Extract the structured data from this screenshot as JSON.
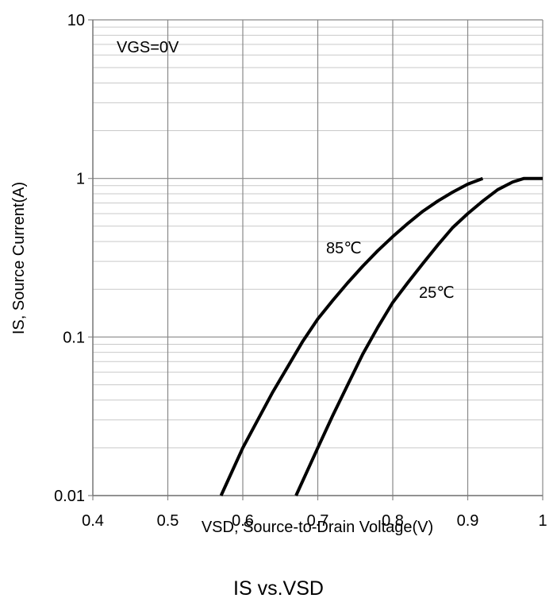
{
  "chart_data": {
    "type": "line",
    "title": "IS vs.VSD",
    "xlabel": "VSD, Source-to-Drain Voltage(V)",
    "ylabel": "IS, Source Current(A)",
    "xlim": [
      0.4,
      1.0
    ],
    "ylim": [
      0.01,
      10
    ],
    "yscale": "log",
    "grid": true,
    "x_ticks": [
      "0.4",
      "0.5",
      "0.6",
      "0.7",
      "0.8",
      "0.9",
      "1"
    ],
    "y_ticks": [
      "0.01",
      "0.1",
      "1",
      "10"
    ],
    "annotation": "VGS=0V",
    "series": [
      {
        "name": "85℃",
        "x": [
          0.571,
          0.6,
          0.62,
          0.64,
          0.66,
          0.68,
          0.7,
          0.72,
          0.74,
          0.76,
          0.78,
          0.8,
          0.82,
          0.84,
          0.86,
          0.88,
          0.9,
          0.92
        ],
        "y": [
          0.01,
          0.02,
          0.03,
          0.045,
          0.065,
          0.094,
          0.13,
          0.17,
          0.22,
          0.28,
          0.35,
          0.43,
          0.52,
          0.62,
          0.72,
          0.82,
          0.92,
          1.0
        ]
      },
      {
        "name": "25℃",
        "x": [
          0.671,
          0.7,
          0.72,
          0.74,
          0.76,
          0.78,
          0.8,
          0.82,
          0.84,
          0.86,
          0.88,
          0.9,
          0.92,
          0.94,
          0.96,
          0.975,
          1.0
        ],
        "y": [
          0.01,
          0.02,
          0.032,
          0.05,
          0.078,
          0.115,
          0.165,
          0.22,
          0.29,
          0.38,
          0.49,
          0.6,
          0.72,
          0.85,
          0.95,
          1.0,
          1.0
        ]
      }
    ]
  }
}
